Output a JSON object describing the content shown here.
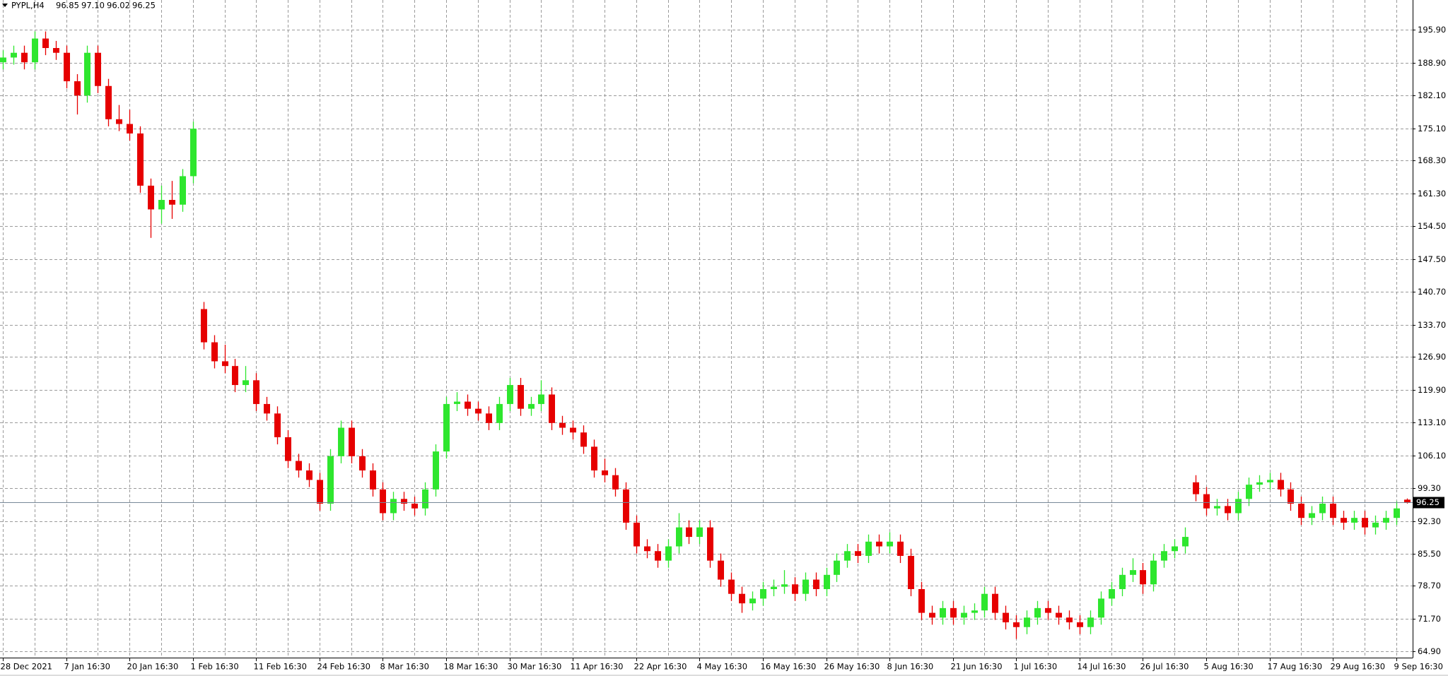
{
  "chart_data": {
    "type": "candlestick",
    "title": "PYPL,H4",
    "last_labels": [
      "96.85",
      "97.10",
      "96.02",
      "96.25"
    ],
    "up_color": "#2ee62e",
    "down_color": "#e60000",
    "grid": true,
    "ylim": [
      63.56,
      202.12
    ],
    "yticks": [
      {
        "value": 195.9,
        "label": "195.90"
      },
      {
        "value": 188.9,
        "label": "188.90"
      },
      {
        "value": 182.1,
        "label": "182.10"
      },
      {
        "value": 175.1,
        "label": "175.10"
      },
      {
        "value": 168.3,
        "label": "168.30"
      },
      {
        "value": 161.3,
        "label": "161.30"
      },
      {
        "value": 154.5,
        "label": "154.50"
      },
      {
        "value": 147.5,
        "label": "147.50"
      },
      {
        "value": 140.7,
        "label": "140.70"
      },
      {
        "value": 133.7,
        "label": "133.70"
      },
      {
        "value": 126.9,
        "label": "126.90"
      },
      {
        "value": 119.9,
        "label": "119.90"
      },
      {
        "value": 113.1,
        "label": "113.10"
      },
      {
        "value": 106.1,
        "label": "106.10"
      },
      {
        "value": 99.3,
        "label": "99.30"
      },
      {
        "value": 92.3,
        "label": "92.30"
      },
      {
        "value": 85.5,
        "label": "85.50"
      },
      {
        "value": 78.7,
        "label": "78.70"
      },
      {
        "value": 71.7,
        "label": "71.70"
      },
      {
        "value": 64.9,
        "label": "64.90"
      }
    ],
    "categories": [
      "28 Dec 2021",
      null,
      null,
      null,
      null,
      null,
      "7 Jan 16:30",
      null,
      null,
      null,
      null,
      null,
      "20 Jan 16:30",
      null,
      null,
      null,
      null,
      null,
      "1 Feb 16:30",
      null,
      null,
      null,
      null,
      null,
      "11 Feb 16:30",
      null,
      null,
      null,
      null,
      null,
      "24 Feb 16:30",
      null,
      null,
      null,
      null,
      null,
      "8 Mar 16:30",
      null,
      null,
      null,
      null,
      null,
      "18 Mar 16:30",
      null,
      null,
      null,
      null,
      null,
      "30 Mar 16:30",
      null,
      null,
      null,
      null,
      null,
      "11 Apr 16:30",
      null,
      null,
      null,
      null,
      null,
      "22 Apr 16:30",
      null,
      null,
      null,
      null,
      null,
      "4 May 16:30",
      null,
      null,
      null,
      null,
      null,
      "16 May 16:30",
      null,
      null,
      null,
      null,
      null,
      "26 May 16:30",
      null,
      null,
      null,
      null,
      null,
      "8 Jun 16:30",
      null,
      null,
      null,
      null,
      null,
      "21 Jun 16:30",
      null,
      null,
      null,
      null,
      null,
      "1 Jul 16:30",
      null,
      null,
      null,
      null,
      null,
      "14 Jul 16:30",
      null,
      null,
      null,
      null,
      null,
      "26 Jul 16:30",
      null,
      null,
      null,
      null,
      null,
      "5 Aug 16:30",
      null,
      null,
      null,
      null,
      null,
      "17 Aug 16:30",
      null,
      null,
      null,
      null,
      null,
      "29 Aug 16:30",
      null,
      null,
      null,
      null,
      null,
      "9 Sep 16:30",
      null
    ],
    "open": [
      189,
      190,
      191,
      189,
      194,
      192,
      191,
      185,
      182,
      191,
      184,
      177,
      176,
      174,
      163,
      158,
      160,
      159,
      165,
      137,
      130,
      126,
      125,
      121,
      122,
      117,
      115,
      110,
      105,
      103,
      101,
      96,
      106,
      112,
      106,
      103,
      99,
      94,
      97,
      96,
      95,
      99,
      107,
      117,
      117.5,
      116,
      115,
      113,
      117,
      121,
      116,
      117,
      119,
      113,
      112,
      111,
      108,
      103,
      102,
      99,
      92,
      87,
      86,
      84,
      87,
      91,
      89,
      91,
      84,
      80,
      77,
      75,
      76,
      78,
      78.5,
      79,
      77,
      80,
      78,
      81,
      84,
      86,
      85,
      88,
      87,
      88,
      85,
      78,
      73,
      72,
      74,
      72,
      73,
      73.5,
      77,
      73,
      71,
      70,
      72,
      74,
      73,
      72,
      71,
      70,
      72,
      76,
      78,
      81,
      82,
      79,
      84,
      86,
      87,
      100.5,
      98,
      95,
      95.5,
      94,
      97,
      100,
      100.5,
      101,
      99,
      96,
      93,
      94,
      96,
      93,
      92,
      93,
      91,
      92,
      93,
      96.85
    ],
    "high": [
      191.5,
      192.5,
      192.5,
      195.5,
      195.5,
      193.5,
      192.5,
      186.5,
      192.5,
      192.5,
      185.5,
      180,
      179,
      175.5,
      164.5,
      163,
      164,
      166.5,
      176.5,
      138.5,
      131.5,
      129.5,
      126.5,
      125,
      123.5,
      118.5,
      116.5,
      111.5,
      106.5,
      104.5,
      102.5,
      107.5,
      113.5,
      113.5,
      107.5,
      104.5,
      100.5,
      98.5,
      98.5,
      97.5,
      100.5,
      108.5,
      118.5,
      119.5,
      119,
      117.5,
      116.5,
      118.5,
      122.5,
      122.5,
      118.5,
      122,
      120.5,
      114.5,
      113.5,
      112.5,
      109.5,
      105.5,
      103.5,
      100.5,
      93.5,
      88.5,
      87.5,
      88.5,
      94,
      92.5,
      92.5,
      92.5,
      85.5,
      81.5,
      78.5,
      77.5,
      79.5,
      80,
      82,
      80.5,
      81.5,
      81.5,
      82.5,
      85.5,
      87.5,
      87.5,
      89.5,
      89.5,
      90,
      89.5,
      86.5,
      79.5,
      74.5,
      75.5,
      75.5,
      74.5,
      75,
      78.5,
      78.5,
      74.5,
      72.5,
      73.5,
      75.5,
      75.5,
      74.5,
      73.5,
      72.5,
      73.5,
      77.5,
      79.5,
      82.5,
      84.5,
      83.5,
      85.5,
      87.5,
      88.5,
      91,
      102,
      99.5,
      97,
      97,
      98.5,
      101.5,
      102,
      102.5,
      102.5,
      100.5,
      97.5,
      95.5,
      97.5,
      97.5,
      94.5,
      94.5,
      94.5,
      93.5,
      94.5,
      96.5,
      97.1
    ],
    "low": [
      187.5,
      188.5,
      187.5,
      187.5,
      190.5,
      189.5,
      183.5,
      178,
      180.5,
      182.5,
      175.5,
      174.5,
      172.5,
      161.5,
      152,
      155,
      156,
      157.5,
      163.5,
      128.5,
      124.5,
      123.5,
      119.5,
      119.5,
      115.5,
      113.5,
      108.5,
      103.5,
      101.5,
      99.5,
      94.5,
      94.5,
      104.5,
      104.5,
      101.5,
      97.5,
      92.5,
      92.5,
      94.5,
      93.5,
      93.5,
      97.5,
      105.5,
      115.5,
      114.5,
      113.5,
      111.5,
      111.5,
      115.5,
      114.5,
      114.5,
      115.5,
      111.5,
      110.5,
      109.5,
      106.5,
      101.5,
      100.5,
      97.5,
      90.5,
      85.5,
      84.5,
      82.5,
      82.5,
      85.5,
      87.5,
      87.5,
      82.5,
      78.5,
      75.5,
      73,
      73.5,
      74.5,
      76.5,
      77,
      75.5,
      75.5,
      76.5,
      76.5,
      79.5,
      82.5,
      83.5,
      83.5,
      85.5,
      85.5,
      83.5,
      76.5,
      71.5,
      70.5,
      70.5,
      70.5,
      70.5,
      71.5,
      72,
      71.5,
      69.5,
      67.5,
      68.5,
      70.5,
      71.5,
      70.5,
      69.5,
      68.5,
      68.5,
      70.5,
      74.5,
      76.5,
      79.5,
      77,
      77.5,
      82.5,
      84.5,
      85.5,
      96.5,
      93.5,
      93.5,
      92.5,
      92.5,
      95.5,
      98.5,
      99,
      97.5,
      94.5,
      91.5,
      91.5,
      92.5,
      91.5,
      90.5,
      90.5,
      89.5,
      89.5,
      90.5,
      91.5,
      96.02
    ],
    "close": [
      190,
      191,
      189,
      194,
      192,
      191,
      185,
      182,
      191,
      184,
      177,
      176,
      174,
      163,
      158,
      160,
      159,
      165,
      175,
      130,
      126,
      125,
      121,
      122,
      117,
      115,
      110,
      105,
      103,
      101,
      96,
      106,
      112,
      106,
      103,
      99,
      94,
      97,
      96,
      95,
      99,
      107,
      117,
      117.5,
      116,
      115,
      113,
      117,
      121,
      116,
      117,
      119,
      113,
      112,
      111,
      108,
      103,
      102,
      99,
      92,
      87,
      86,
      84,
      87,
      91,
      89,
      91,
      84,
      80,
      77,
      75,
      76,
      78,
      78.5,
      79,
      77,
      80,
      78,
      81,
      84,
      86,
      85,
      88,
      87,
      88,
      85,
      78,
      73,
      72,
      74,
      72,
      73,
      73.5,
      77,
      73,
      71,
      70,
      72,
      74,
      73,
      72,
      71,
      70,
      72,
      76,
      78,
      81,
      82,
      79,
      84,
      86,
      87,
      89,
      98,
      95,
      95.5,
      94,
      97,
      100,
      100.5,
      101,
      99,
      96,
      93,
      94,
      96,
      93,
      92,
      93,
      91,
      92,
      93,
      95,
      96.25
    ]
  }
}
